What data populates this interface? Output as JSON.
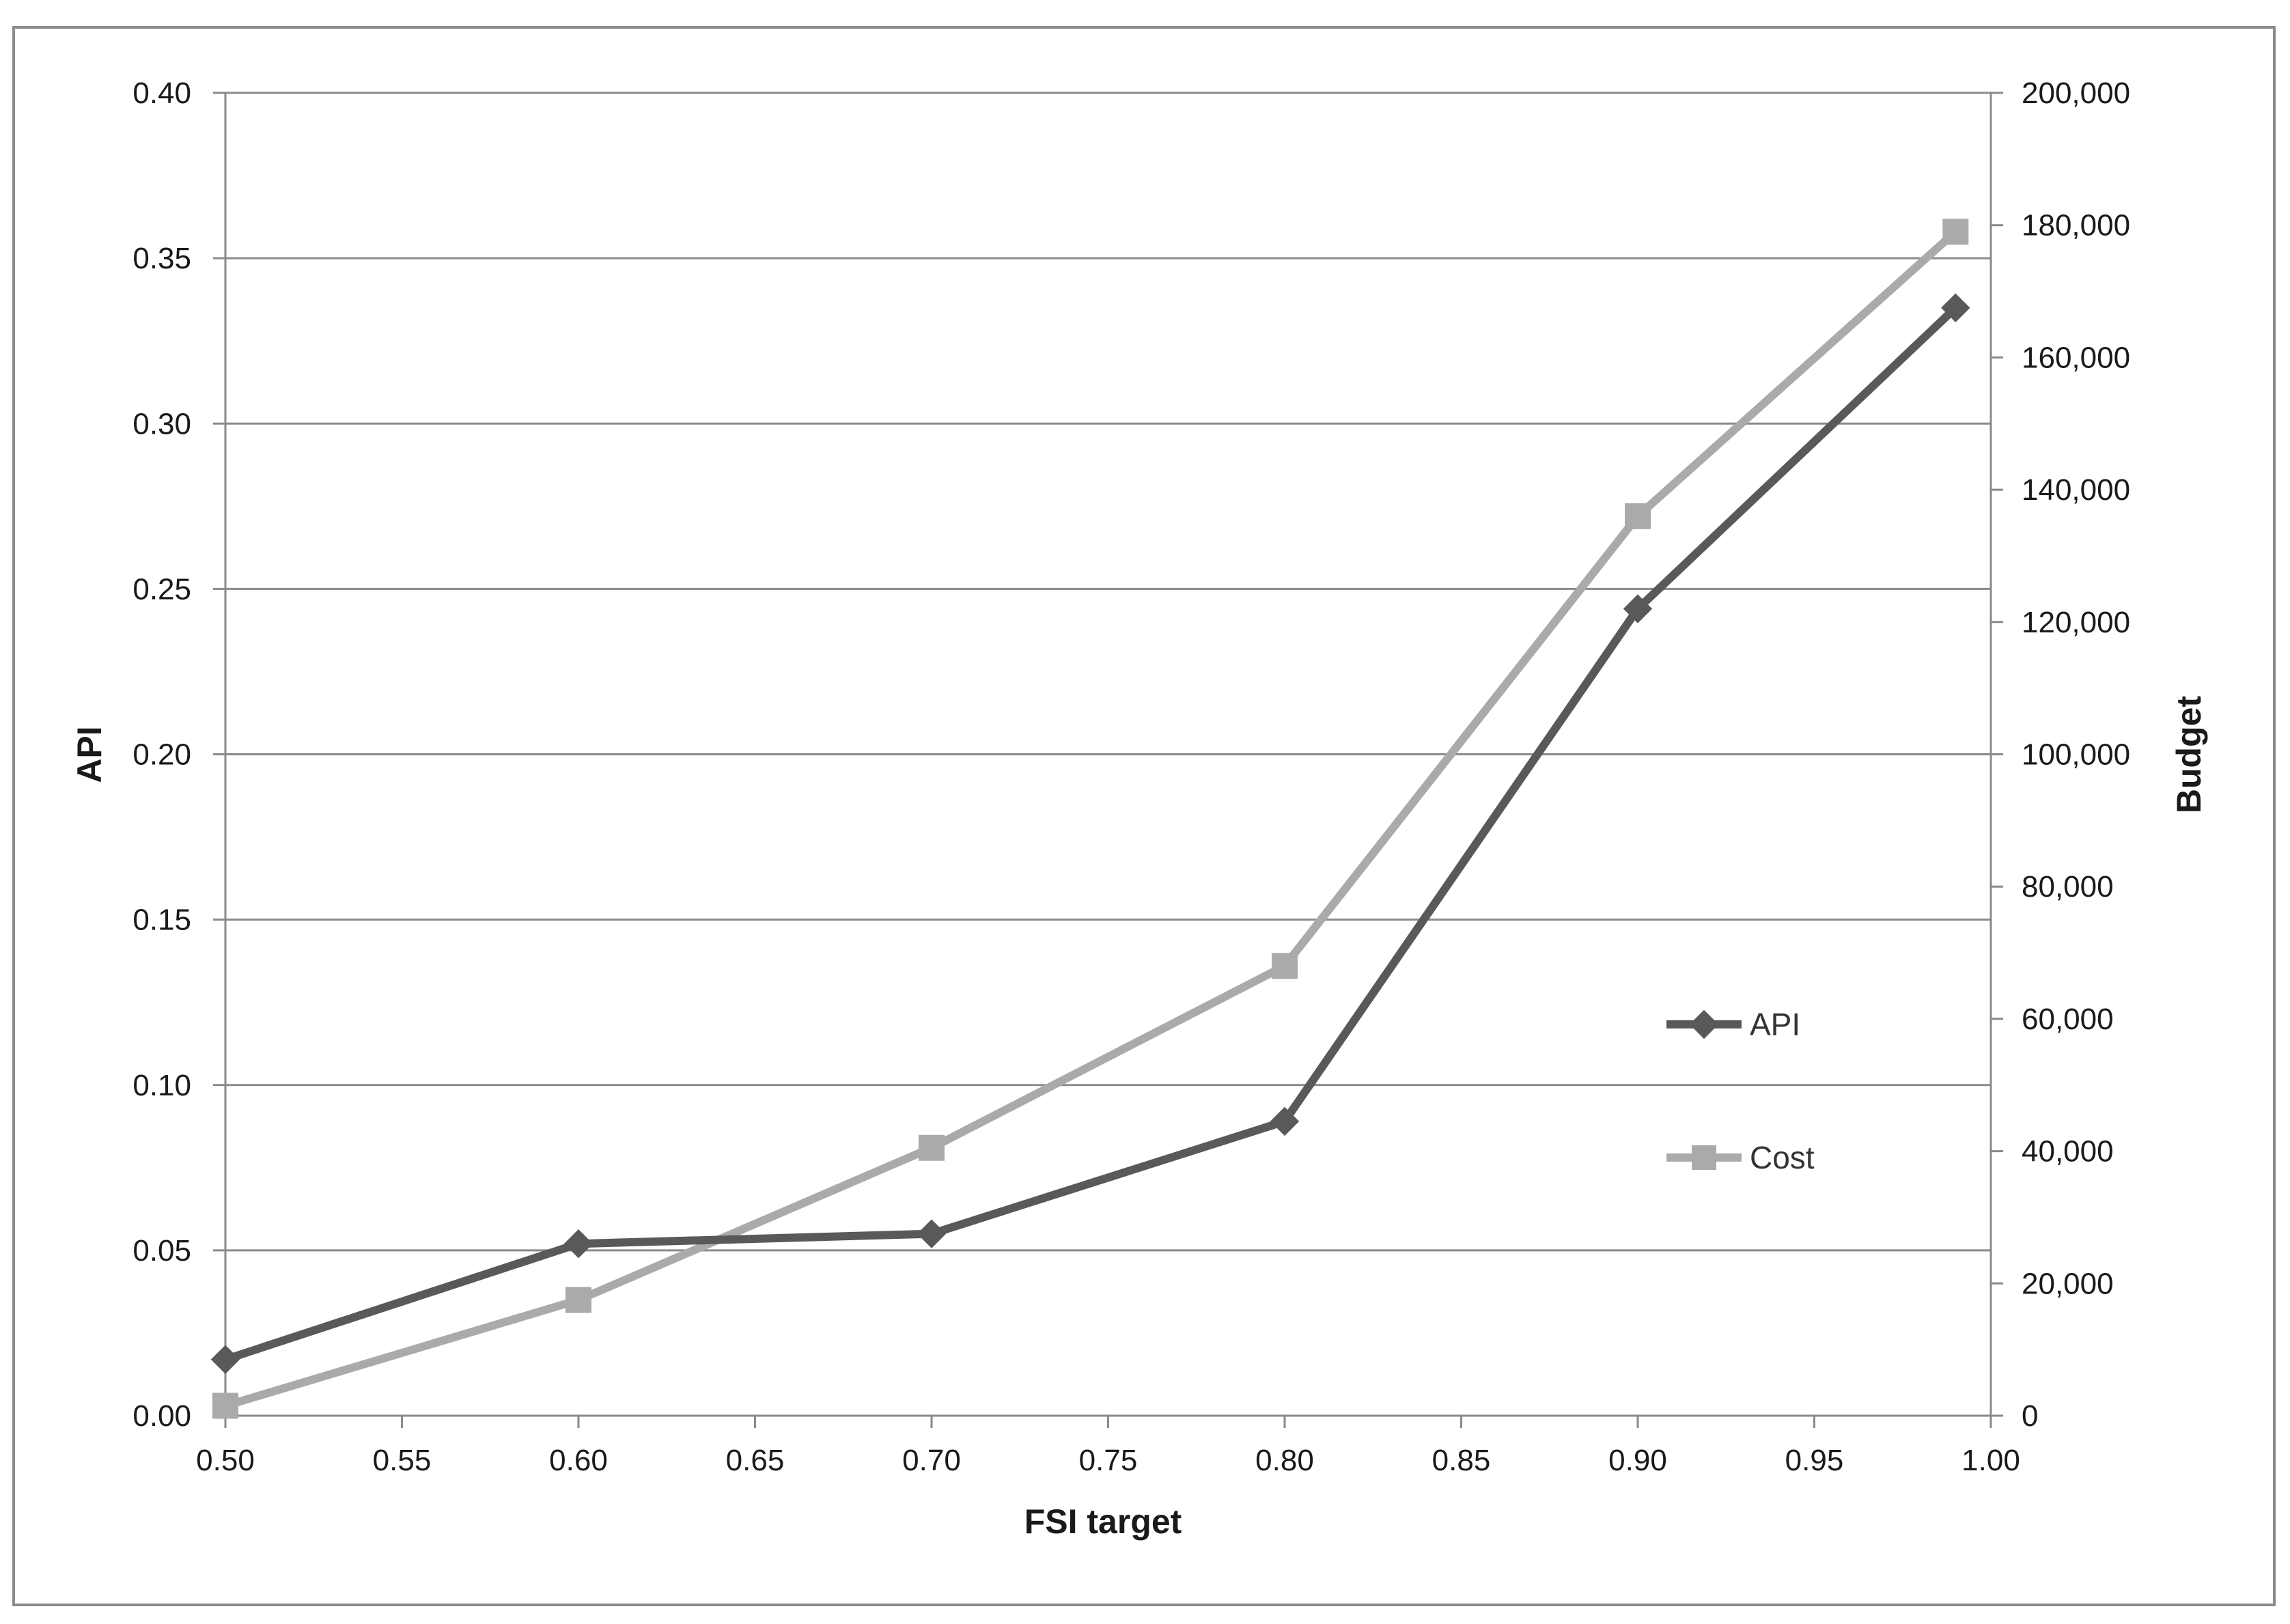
{
  "chart_data": {
    "type": "line",
    "title": "",
    "xlabel": "FSI target",
    "ylabel": "API",
    "y2label": "Budget",
    "xlim": [
      0.5,
      1.0
    ],
    "ylim": [
      0,
      0.4
    ],
    "y2lim": [
      0,
      200000
    ],
    "x_ticks": [
      "0.50",
      "0.55",
      "0.60",
      "0.65",
      "0.70",
      "0.75",
      "0.80",
      "0.85",
      "0.90",
      "0.95",
      "1.00"
    ],
    "y_ticks": [
      "0.00",
      "0.05",
      "0.10",
      "0.15",
      "0.20",
      "0.25",
      "0.30",
      "0.35",
      "0.40"
    ],
    "y2_ticks": [
      "0",
      "20,000",
      "40,000",
      "60,000",
      "80,000",
      "100,000",
      "120,000",
      "140,000",
      "160,000",
      "180,000",
      "200,000"
    ],
    "grid": true,
    "legend_position": "right-center",
    "series": [
      {
        "name": "API",
        "axis": "left",
        "marker": "diamond",
        "color": "#595959",
        "x": [
          0.5,
          0.6,
          0.7,
          0.8,
          0.9,
          0.99
        ],
        "y": [
          0.017,
          0.052,
          0.055,
          0.089,
          0.244,
          0.335
        ]
      },
      {
        "name": "Cost",
        "axis": "right",
        "marker": "square",
        "color": "#aaaaaa",
        "x": [
          0.5,
          0.6,
          0.7,
          0.8,
          0.9,
          0.99
        ],
        "y": [
          1500,
          17500,
          40500,
          68000,
          136000,
          179000
        ]
      }
    ]
  }
}
